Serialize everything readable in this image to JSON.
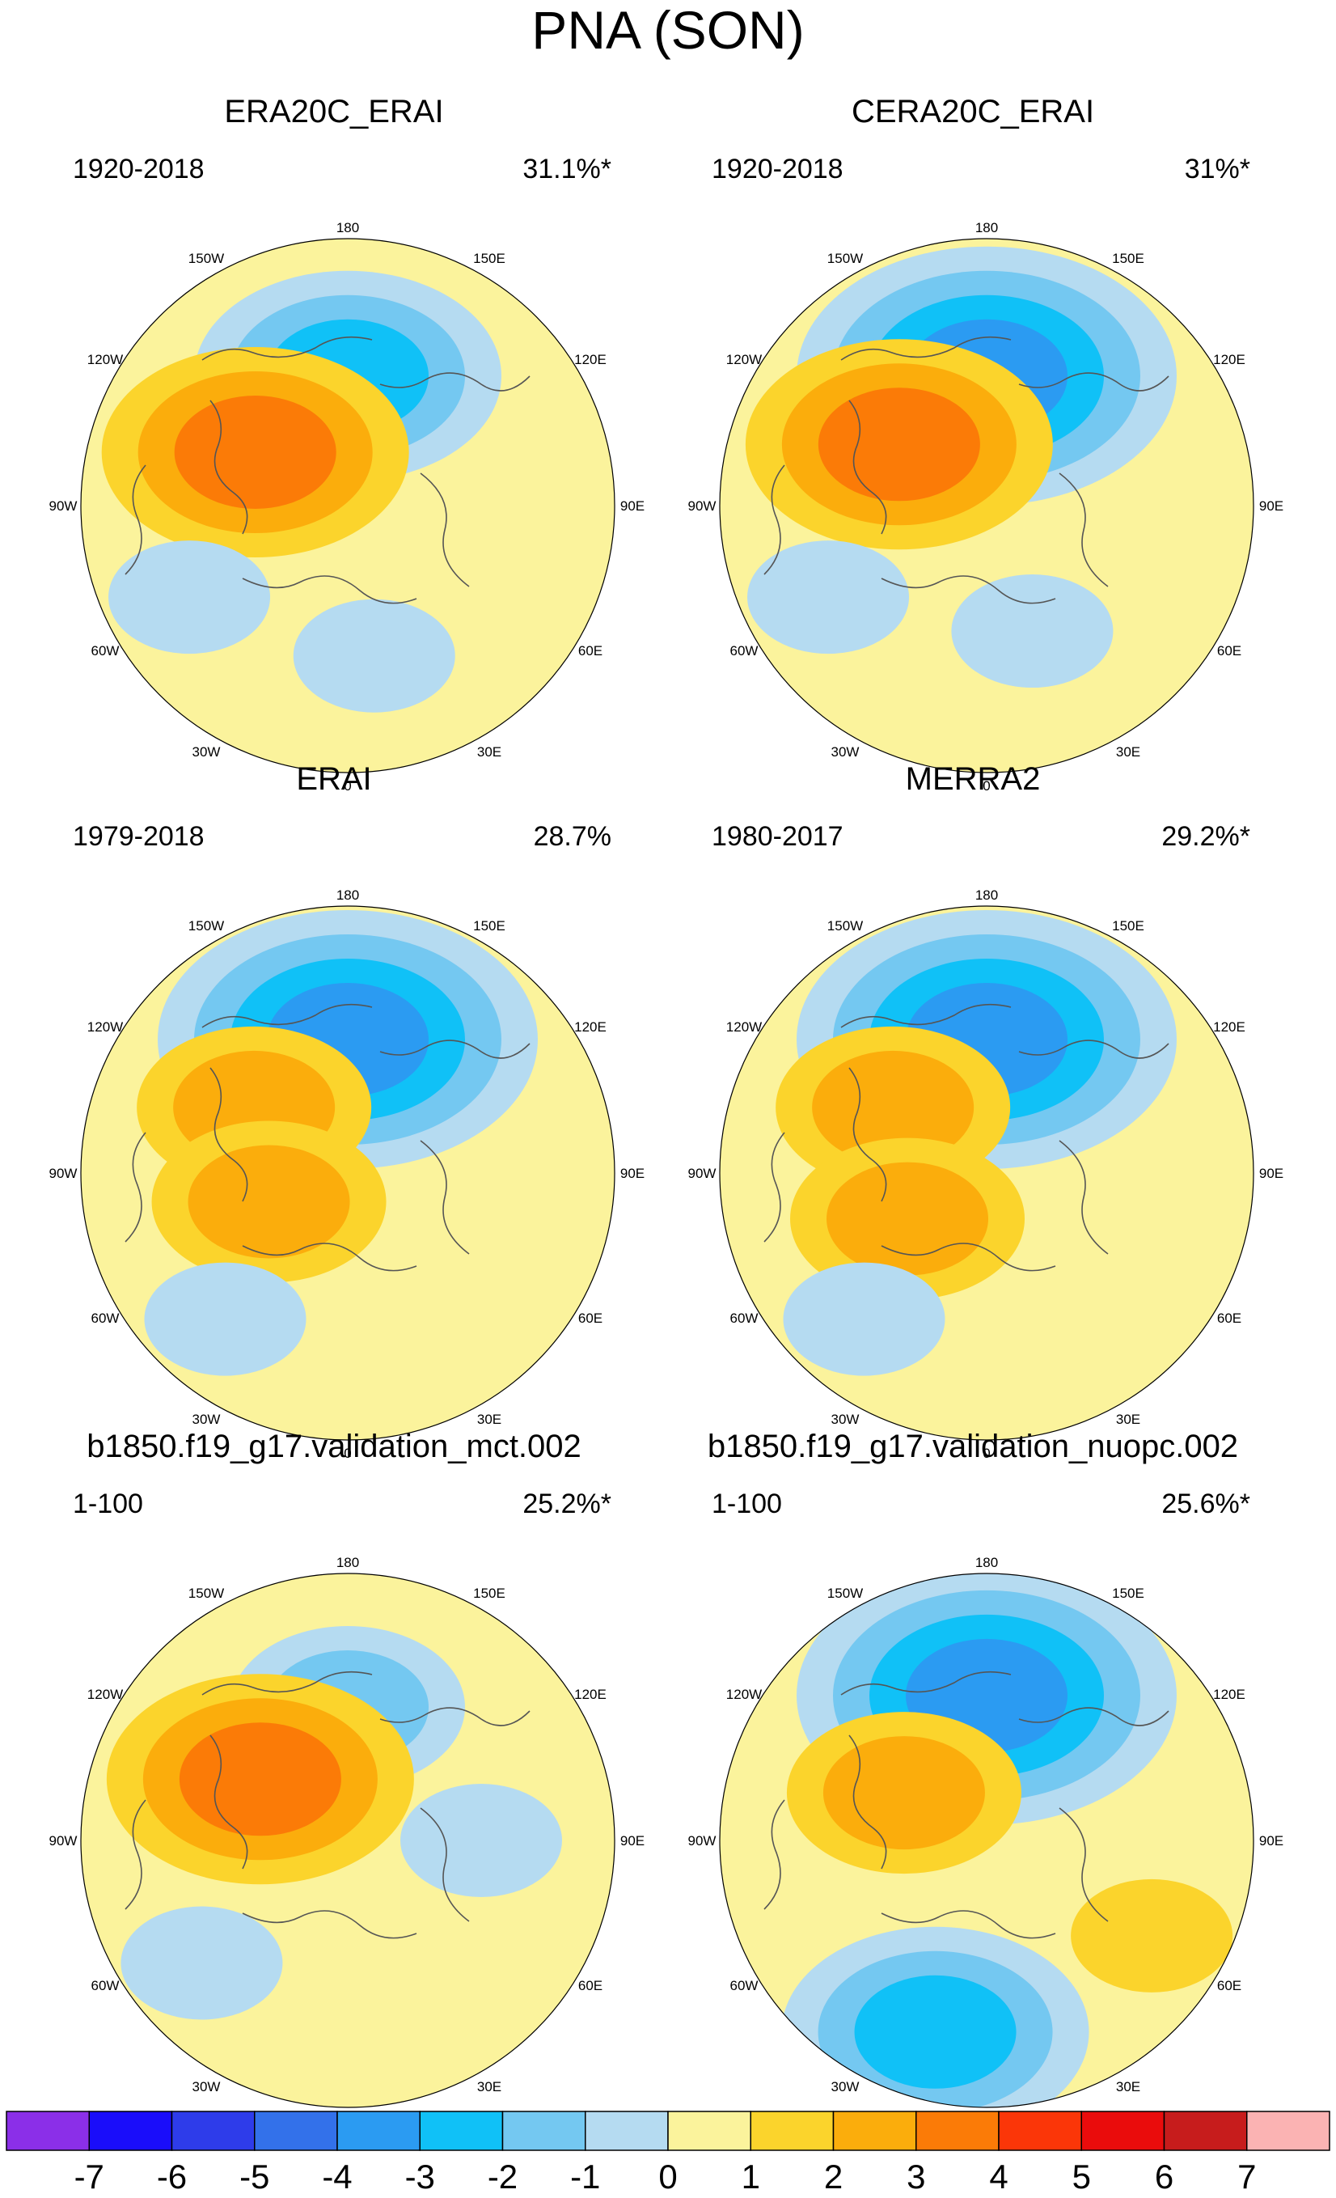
{
  "title": "PNA (SON)",
  "colors": {
    "-7": "#8b2fe8",
    "-6": "#1a0dfa",
    "-5": "#2e3cea",
    "-4": "#3371ea",
    "-3": "#2b9bf2",
    "-2": "#10c1f7",
    "-1": "#74c8f1",
    "0": "#b5dbf1",
    "1": "#fbf39c",
    "2": "#fbd42c",
    "3": "#fbad0c",
    "4": "#fb7b07",
    "5": "#fb3608",
    "6": "#ea0c0c",
    "7": "#c71c1c",
    "8": "#fbb3b3",
    "coast": "#555555",
    "border": "#000000"
  },
  "chart_data": {
    "type": "polar_contour_maps",
    "variable": "PNA pattern, SON",
    "lon_labels": [
      "180",
      "150E",
      "120E",
      "90E",
      "60E",
      "30E",
      "0",
      "30W",
      "60W",
      "90W",
      "120W",
      "150W"
    ],
    "panels": [
      {
        "title": "ERA20C_ERAI",
        "period": "1920-2018",
        "variance": "31.1%*",
        "anomalies": [
          {
            "lon": 180,
            "lat": 56,
            "value": -3,
            "extent": "negative center over North Pacific / Aleutians"
          },
          {
            "lon": 240,
            "lat": 62,
            "value": 3,
            "extent": "positive center over western Canada"
          },
          {
            "lon": 300,
            "lat": 42,
            "value": -1,
            "extent": "weak negative over southeastern US / Atlantic"
          },
          {
            "lon": 10,
            "lat": 50,
            "value": -1,
            "extent": "weak negative over Europe"
          }
        ]
      },
      {
        "title": "CERA20C_ERAI",
        "period": "1920-2018",
        "variance": "31%*",
        "anomalies": [
          {
            "lon": 180,
            "lat": 56,
            "value": -4,
            "extent": "negative center over North Pacific"
          },
          {
            "lon": 235,
            "lat": 62,
            "value": 3,
            "extent": "positive center over western Canada"
          },
          {
            "lon": 300,
            "lat": 42,
            "value": -1,
            "extent": "weak negative over Atlantic"
          },
          {
            "lon": 20,
            "lat": 55,
            "value": -1,
            "extent": "weak negative over Europe"
          }
        ]
      },
      {
        "title": "ERAI",
        "period": "1979-2018",
        "variance": "28.7%",
        "anomalies": [
          {
            "lon": 180,
            "lat": 55,
            "value": -4,
            "extent": "negative center over North Pacific"
          },
          {
            "lon": 235,
            "lat": 60,
            "value": 2,
            "extent": "weak positive over western Canada"
          },
          {
            "lon": 290,
            "lat": 68,
            "value": 2,
            "extent": "weak positive over Baffin Bay"
          },
          {
            "lon": 320,
            "lat": 40,
            "value": -1,
            "extent": "negative over North Atlantic"
          }
        ]
      },
      {
        "title": "MERRA2",
        "period": "1980-2017",
        "variance": "29.2%*",
        "anomalies": [
          {
            "lon": 180,
            "lat": 55,
            "value": -4,
            "extent": "negative center over North Pacific"
          },
          {
            "lon": 235,
            "lat": 60,
            "value": 2,
            "extent": "positive over western Canada"
          },
          {
            "lon": 300,
            "lat": 66,
            "value": 2,
            "extent": "positive over Greenland"
          },
          {
            "lon": 320,
            "lat": 40,
            "value": -1,
            "extent": "negative over North Atlantic"
          }
        ]
      },
      {
        "title": "b1850.f19_g17.validation_mct.002",
        "period": "1-100",
        "variance": "25.2%*",
        "anomalies": [
          {
            "lon": 180,
            "lat": 55,
            "value": -2,
            "extent": "negative center over North Pacific"
          },
          {
            "lon": 235,
            "lat": 62,
            "value": 3,
            "extent": "broad positive over Canada"
          },
          {
            "lon": 310,
            "lat": 40,
            "value": -1,
            "extent": "negative over Atlantic"
          },
          {
            "lon": 90,
            "lat": 55,
            "value": -1,
            "extent": "negative over Eurasia"
          }
        ]
      },
      {
        "title": "b1850.f19_g17.validation_nuopc.002",
        "period": "1-100",
        "variance": "25.6%*",
        "anomalies": [
          {
            "lon": 180,
            "lat": 52,
            "value": -4,
            "extent": "negative center over North Pacific"
          },
          {
            "lon": 240,
            "lat": 65,
            "value": 2,
            "extent": "positive over northern Canada"
          },
          {
            "lon": 345,
            "lat": 38,
            "value": -3,
            "extent": "negative over subtropical Atlantic"
          },
          {
            "lon": 60,
            "lat": 40,
            "value": 1,
            "extent": "positive over Asia"
          }
        ]
      }
    ],
    "colorbar": {
      "ticks": [
        "-7",
        "-6",
        "-5",
        "-4",
        "-3",
        "-2",
        "-1",
        "0",
        "1",
        "2",
        "3",
        "4",
        "5",
        "6",
        "7"
      ],
      "levels": [
        -7,
        -6,
        -5,
        -4,
        -3,
        -2,
        -1,
        0,
        1,
        2,
        3,
        4,
        5,
        6,
        7
      ]
    }
  }
}
